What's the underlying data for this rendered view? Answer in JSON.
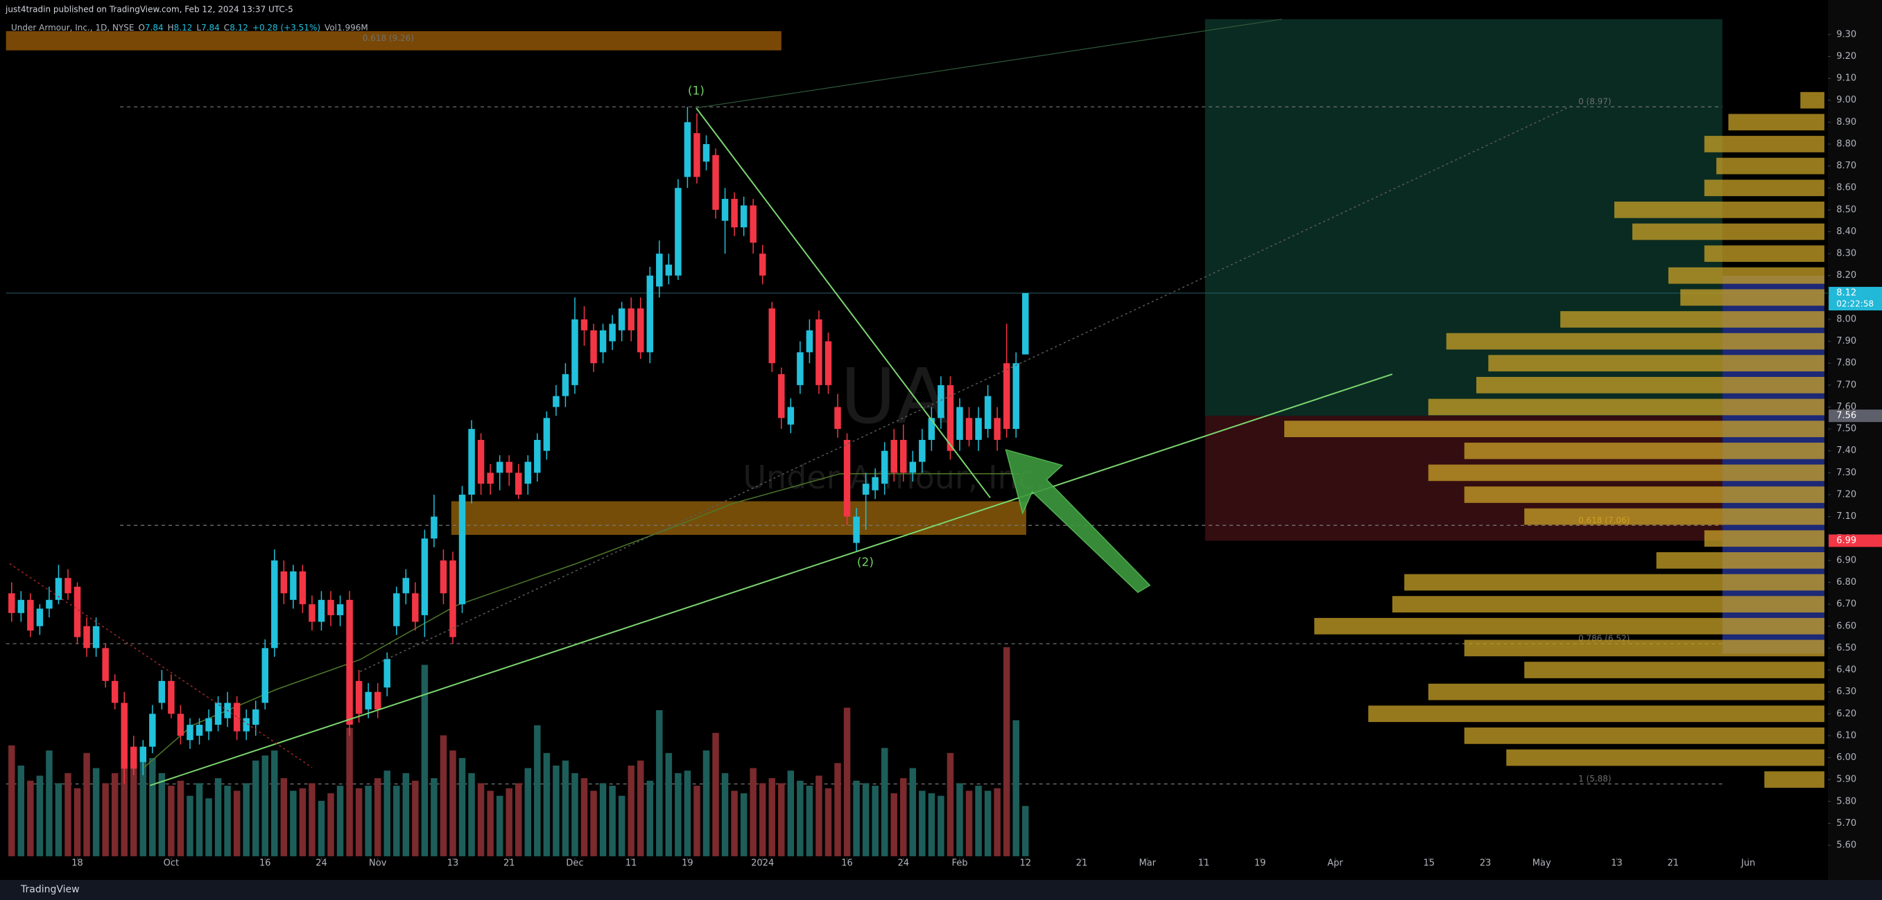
{
  "header": {
    "publisher": "just4tradin published on TradingView.com, Feb 12, 2024 13:37 UTC-5",
    "symbol": "Under Armour, Inc., 1D, NYSE",
    "ohlc": [
      {
        "label": "O",
        "value": 7.84
      },
      {
        "label": "H",
        "value": 8.12
      },
      {
        "label": "L",
        "value": 7.84
      },
      {
        "label": "C",
        "value": 8.12
      }
    ],
    "change": "+0.28 (+3.51%)",
    "volume": "Vol1.996M"
  },
  "footer": {
    "brand": "TradingView"
  },
  "chart_data": {
    "type": "candlestick",
    "watermark": [
      "UA",
      "Under Armour, Inc."
    ],
    "x": [
      0,
      1,
      2,
      3,
      4,
      5,
      6,
      7,
      8,
      9,
      10,
      11,
      12,
      13,
      14,
      15,
      16,
      17,
      18,
      19,
      20,
      21,
      22,
      23,
      24,
      25,
      26,
      27,
      28,
      29,
      30,
      31,
      32,
      33,
      34,
      35,
      36,
      37,
      38,
      39,
      40,
      41,
      42,
      43,
      44,
      45,
      46,
      47,
      48,
      49,
      50,
      51,
      52,
      53,
      54,
      55,
      56,
      57,
      58,
      59,
      60,
      61,
      62,
      63,
      64,
      65,
      66,
      67,
      68,
      69,
      70,
      71,
      72,
      73,
      74,
      75,
      76,
      77,
      78,
      79,
      80,
      81,
      82,
      83,
      84,
      85,
      86,
      87,
      88,
      89,
      90,
      91,
      92,
      93,
      94,
      95,
      96,
      97,
      98,
      99,
      100,
      101,
      102,
      103,
      104,
      105,
      106,
      107,
      108
    ],
    "ohlc": [
      [
        6.75,
        6.8,
        6.62,
        6.66
      ],
      [
        6.66,
        6.76,
        6.62,
        6.72
      ],
      [
        6.72,
        6.75,
        6.55,
        6.58
      ],
      [
        6.6,
        6.7,
        6.56,
        6.68
      ],
      [
        6.68,
        6.78,
        6.64,
        6.72
      ],
      [
        6.72,
        6.88,
        6.7,
        6.82
      ],
      [
        6.82,
        6.86,
        6.72,
        6.75
      ],
      [
        6.78,
        6.8,
        6.52,
        6.55
      ],
      [
        6.6,
        6.64,
        6.46,
        6.5
      ],
      [
        6.5,
        6.64,
        6.46,
        6.6
      ],
      [
        6.5,
        6.52,
        6.32,
        6.35
      ],
      [
        6.35,
        6.38,
        6.22,
        6.25
      ],
      [
        6.25,
        6.3,
        5.88,
        5.95
      ],
      [
        6.05,
        6.1,
        5.92,
        5.95
      ],
      [
        5.98,
        6.08,
        5.92,
        6.05
      ],
      [
        6.05,
        6.24,
        6.02,
        6.2
      ],
      [
        6.25,
        6.4,
        6.22,
        6.35
      ],
      [
        6.35,
        6.38,
        6.18,
        6.2
      ],
      [
        6.2,
        6.24,
        6.06,
        6.1
      ],
      [
        6.08,
        6.18,
        6.04,
        6.15
      ],
      [
        6.1,
        6.18,
        6.06,
        6.15
      ],
      [
        6.12,
        6.22,
        6.08,
        6.18
      ],
      [
        6.15,
        6.28,
        6.12,
        6.25
      ],
      [
        6.18,
        6.3,
        6.14,
        6.25
      ],
      [
        6.25,
        6.28,
        6.08,
        6.12
      ],
      [
        6.12,
        6.22,
        6.08,
        6.18
      ],
      [
        6.15,
        6.26,
        6.1,
        6.22
      ],
      [
        6.25,
        6.54,
        6.22,
        6.5
      ],
      [
        6.5,
        6.95,
        6.46,
        6.9
      ],
      [
        6.85,
        6.9,
        6.7,
        6.75
      ],
      [
        6.72,
        6.88,
        6.68,
        6.85
      ],
      [
        6.85,
        6.88,
        6.66,
        6.7
      ],
      [
        6.7,
        6.74,
        6.58,
        6.62
      ],
      [
        6.62,
        6.76,
        6.58,
        6.72
      ],
      [
        6.72,
        6.76,
        6.6,
        6.65
      ],
      [
        6.65,
        6.74,
        6.6,
        6.7
      ],
      [
        6.72,
        6.76,
        6.1,
        6.15
      ],
      [
        6.35,
        6.4,
        6.16,
        6.2
      ],
      [
        6.22,
        6.34,
        6.18,
        6.3
      ],
      [
        6.3,
        6.34,
        6.18,
        6.22
      ],
      [
        6.32,
        6.48,
        6.28,
        6.45
      ],
      [
        6.6,
        6.78,
        6.56,
        6.75
      ],
      [
        6.75,
        6.86,
        6.7,
        6.82
      ],
      [
        6.75,
        6.8,
        6.58,
        6.62
      ],
      [
        6.65,
        7.04,
        6.55,
        7.0
      ],
      [
        7.0,
        7.2,
        6.96,
        7.1
      ],
      [
        6.9,
        6.95,
        6.7,
        6.75
      ],
      [
        6.9,
        6.94,
        6.52,
        6.55
      ],
      [
        6.7,
        7.24,
        6.66,
        7.2
      ],
      [
        7.2,
        7.54,
        7.16,
        7.5
      ],
      [
        7.45,
        7.48,
        7.2,
        7.25
      ],
      [
        7.3,
        7.34,
        7.2,
        7.25
      ],
      [
        7.3,
        7.38,
        7.22,
        7.35
      ],
      [
        7.35,
        7.38,
        7.24,
        7.3
      ],
      [
        7.3,
        7.34,
        7.18,
        7.2
      ],
      [
        7.25,
        7.38,
        7.2,
        7.35
      ],
      [
        7.3,
        7.48,
        7.26,
        7.45
      ],
      [
        7.4,
        7.58,
        7.36,
        7.55
      ],
      [
        7.6,
        7.7,
        7.56,
        7.65
      ],
      [
        7.65,
        7.8,
        7.6,
        7.75
      ],
      [
        7.7,
        8.1,
        7.66,
        8.0
      ],
      [
        8.0,
        8.06,
        7.88,
        7.95
      ],
      [
        7.95,
        7.98,
        7.76,
        7.8
      ],
      [
        7.85,
        7.98,
        7.8,
        7.95
      ],
      [
        7.9,
        8.02,
        7.86,
        7.98
      ],
      [
        7.95,
        8.08,
        7.9,
        8.05
      ],
      [
        8.05,
        8.1,
        7.9,
        7.95
      ],
      [
        8.05,
        8.1,
        7.82,
        7.85
      ],
      [
        7.85,
        8.24,
        7.8,
        8.2
      ],
      [
        8.15,
        8.36,
        8.1,
        8.3
      ],
      [
        8.2,
        8.3,
        8.16,
        8.25
      ],
      [
        8.2,
        8.64,
        8.18,
        8.6
      ],
      [
        8.65,
        8.97,
        8.6,
        8.9
      ],
      [
        8.85,
        8.94,
        8.62,
        8.65
      ],
      [
        8.72,
        8.84,
        8.68,
        8.8
      ],
      [
        8.75,
        8.78,
        8.46,
        8.5
      ],
      [
        8.45,
        8.6,
        8.3,
        8.55
      ],
      [
        8.55,
        8.58,
        8.38,
        8.42
      ],
      [
        8.42,
        8.56,
        8.38,
        8.52
      ],
      [
        8.52,
        8.55,
        8.3,
        8.35
      ],
      [
        8.3,
        8.34,
        8.16,
        8.2
      ],
      [
        8.05,
        8.08,
        7.76,
        7.8
      ],
      [
        7.75,
        7.78,
        7.5,
        7.55
      ],
      [
        7.52,
        7.64,
        7.48,
        7.6
      ],
      [
        7.7,
        7.9,
        7.66,
        7.85
      ],
      [
        7.85,
        8.0,
        7.8,
        7.95
      ],
      [
        8.0,
        8.04,
        7.66,
        7.7
      ],
      [
        7.9,
        7.94,
        7.66,
        7.7
      ],
      [
        7.6,
        7.66,
        7.46,
        7.5
      ],
      [
        7.45,
        7.48,
        7.06,
        7.1
      ],
      [
        6.98,
        7.14,
        6.94,
        7.1
      ],
      [
        7.2,
        7.3,
        7.04,
        7.25
      ],
      [
        7.22,
        7.32,
        7.18,
        7.28
      ],
      [
        7.25,
        7.44,
        7.2,
        7.4
      ],
      [
        7.45,
        7.5,
        7.26,
        7.3
      ],
      [
        7.45,
        7.52,
        7.26,
        7.3
      ],
      [
        7.3,
        7.4,
        7.26,
        7.35
      ],
      [
        7.35,
        7.5,
        7.3,
        7.45
      ],
      [
        7.45,
        7.6,
        7.4,
        7.55
      ],
      [
        7.55,
        7.74,
        7.5,
        7.7
      ],
      [
        7.7,
        7.74,
        7.36,
        7.4
      ],
      [
        7.45,
        7.64,
        7.4,
        7.6
      ],
      [
        7.55,
        7.6,
        7.42,
        7.45
      ],
      [
        7.45,
        7.6,
        7.4,
        7.55
      ],
      [
        7.5,
        7.7,
        7.46,
        7.65
      ],
      [
        7.55,
        7.6,
        7.4,
        7.45
      ],
      [
        7.8,
        7.98,
        7.46,
        7.5
      ],
      [
        7.5,
        7.85,
        7.46,
        7.8
      ],
      [
        7.84,
        8.12,
        7.84,
        8.12
      ]
    ],
    "volume": [
      4.4,
      3.6,
      3.0,
      3.2,
      4.2,
      2.9,
      3.3,
      2.7,
      4.1,
      3.5,
      2.9,
      3.3,
      4.6,
      3.8,
      4.3,
      3.9,
      3.3,
      2.8,
      3.0,
      2.4,
      2.9,
      2.3,
      3.1,
      2.8,
      2.6,
      2.9,
      3.8,
      4.0,
      4.2,
      3.1,
      2.6,
      2.7,
      2.9,
      2.2,
      2.5,
      2.8,
      5.1,
      2.7,
      2.8,
      3.1,
      3.4,
      2.8,
      3.3,
      3.0,
      7.6,
      3.1,
      4.8,
      4.2,
      3.9,
      3.3,
      2.9,
      2.6,
      2.4,
      2.7,
      2.9,
      3.5,
      5.2,
      4.1,
      3.6,
      3.8,
      3.3,
      3.1,
      2.6,
      2.9,
      2.8,
      2.4,
      3.6,
      3.8,
      3.0,
      5.8,
      4.1,
      3.3,
      3.4,
      2.8,
      4.2,
      4.9,
      3.3,
      2.6,
      2.5,
      3.5,
      2.9,
      3.1,
      2.9,
      3.4,
      3.0,
      2.8,
      3.2,
      2.7,
      3.7,
      5.9,
      3.0,
      2.9,
      2.8,
      4.3,
      2.5,
      3.1,
      3.5,
      2.6,
      2.5,
      2.4,
      4.1,
      2.9,
      2.6,
      2.8,
      2.6,
      2.7,
      8.3,
      5.4,
      1.996
    ],
    "up_color": "#22c1dc",
    "down_color": "#f23645",
    "volume_up_color": "#1d5e5a",
    "volume_down_color": "#7b2a2d",
    "volume_profile": {
      "prices": [
        5.9,
        6.0,
        6.1,
        6.2,
        6.3,
        6.4,
        6.5,
        6.6,
        6.7,
        6.8,
        6.9,
        7.0,
        7.1,
        7.2,
        7.3,
        7.4,
        7.5,
        7.6,
        7.7,
        7.8,
        7.9,
        8.0,
        8.1,
        8.2,
        8.3,
        8.4,
        8.5,
        8.6,
        8.7,
        8.8,
        8.9,
        9.0
      ],
      "values": [
        50,
        265,
        300,
        380,
        330,
        250,
        300,
        425,
        360,
        350,
        140,
        100,
        250,
        300,
        330,
        300,
        450,
        330,
        290,
        280,
        315,
        220,
        120,
        130,
        100,
        160,
        175,
        100,
        90,
        100,
        80,
        20
      ],
      "color": "#c9a227"
    },
    "fib_levels": [
      {
        "value": 9.26,
        "label": "0.618 (9.26)"
      },
      {
        "value": 8.97,
        "label": "0 (8.97)"
      },
      {
        "value": 7.06,
        "label": "0.618 (7.06)"
      },
      {
        "value": 6.52,
        "label": "0.786 (6.52)"
      },
      {
        "value": 5.88,
        "label": "1 (5.88)"
      }
    ],
    "wave_labels": [
      "(1)",
      "(2)"
    ],
    "price_labels": [
      {
        "value": 8.12,
        "color": "#22b8d8",
        "countdown": "02:22:58"
      },
      {
        "value": 7.56,
        "color": "#5d606b"
      },
      {
        "value": 6.99,
        "color": "#f23645"
      }
    ],
    "xlim": [
      -0.6,
      193.5
    ],
    "xticks": [
      {
        "value": 7,
        "label": "18"
      },
      {
        "value": 17,
        "label": "Oct"
      },
      {
        "value": 27,
        "label": "16"
      },
      {
        "value": 33,
        "label": "24"
      },
      {
        "value": 39,
        "label": "Nov"
      },
      {
        "value": 47,
        "label": "13"
      },
      {
        "value": 53,
        "label": "21"
      },
      {
        "value": 60,
        "label": "Dec"
      },
      {
        "value": 66,
        "label": "11"
      },
      {
        "value": 72,
        "label": "19"
      },
      {
        "value": 80,
        "label": "2024"
      },
      {
        "value": 89,
        "label": "16"
      },
      {
        "value": 95,
        "label": "24"
      },
      {
        "value": 101,
        "label": "Feb"
      },
      {
        "value": 108,
        "label": "12"
      },
      {
        "value": 114,
        "label": "21"
      },
      {
        "value": 121,
        "label": "Mar"
      },
      {
        "value": 127,
        "label": "11"
      },
      {
        "value": 133,
        "label": "19"
      },
      {
        "value": 141,
        "label": "Apr"
      },
      {
        "value": 151,
        "label": "15"
      },
      {
        "value": 157,
        "label": "23"
      },
      {
        "value": 163,
        "label": "May"
      },
      {
        "value": 171,
        "label": "13"
      },
      {
        "value": 177,
        "label": "21"
      },
      {
        "value": 185,
        "label": "Jun"
      }
    ],
    "ylim": [
      5.55,
      9.37
    ],
    "yticks": [
      {
        "value": 5.6,
        "label": "5.60"
      },
      {
        "value": 5.7,
        "label": "5.70"
      },
      {
        "value": 5.8,
        "label": "5.80"
      },
      {
        "value": 5.9,
        "label": "5.90"
      },
      {
        "value": 6.0,
        "label": "6.00"
      },
      {
        "value": 6.1,
        "label": "6.10"
      },
      {
        "value": 6.2,
        "label": "6.20"
      },
      {
        "value": 6.3,
        "label": "6.30"
      },
      {
        "value": 6.4,
        "label": "6.40"
      },
      {
        "value": 6.5,
        "label": "6.50"
      },
      {
        "value": 6.6,
        "label": "6.60"
      },
      {
        "value": 6.7,
        "label": "6.70"
      },
      {
        "value": 6.8,
        "label": "6.80"
      },
      {
        "value": 6.9,
        "label": "6.90"
      },
      {
        "value": 7.0,
        "label": "7.00"
      },
      {
        "value": 7.1,
        "label": "7.10"
      },
      {
        "value": 7.2,
        "label": "7.20"
      },
      {
        "value": 7.3,
        "label": "7.30"
      },
      {
        "value": 7.4,
        "label": "7.40"
      },
      {
        "value": 7.5,
        "label": "7.50"
      },
      {
        "value": 7.6,
        "label": "7.60"
      },
      {
        "value": 7.7,
        "label": "7.70"
      },
      {
        "value": 7.8,
        "label": "7.80"
      },
      {
        "value": 7.9,
        "label": "7.90"
      },
      {
        "value": 8.0,
        "label": "8.00"
      },
      {
        "value": 8.1,
        "label": "8.10"
      },
      {
        "value": 8.2,
        "label": "8.20"
      },
      {
        "value": 8.3,
        "label": "8.30"
      },
      {
        "value": 8.4,
        "label": "8.40"
      },
      {
        "value": 8.5,
        "label": "8.50"
      },
      {
        "value": 8.6,
        "label": "8.60"
      },
      {
        "value": 8.7,
        "label": "8.70"
      },
      {
        "value": 8.8,
        "label": "8.80"
      },
      {
        "value": 8.9,
        "label": "8.90"
      },
      {
        "value": 9.0,
        "label": "9.00"
      },
      {
        "value": 9.1,
        "label": "9.10"
      },
      {
        "value": 9.2,
        "label": "9.20"
      },
      {
        "value": 9.3,
        "label": "9.30"
      }
    ],
    "grid": false
  }
}
